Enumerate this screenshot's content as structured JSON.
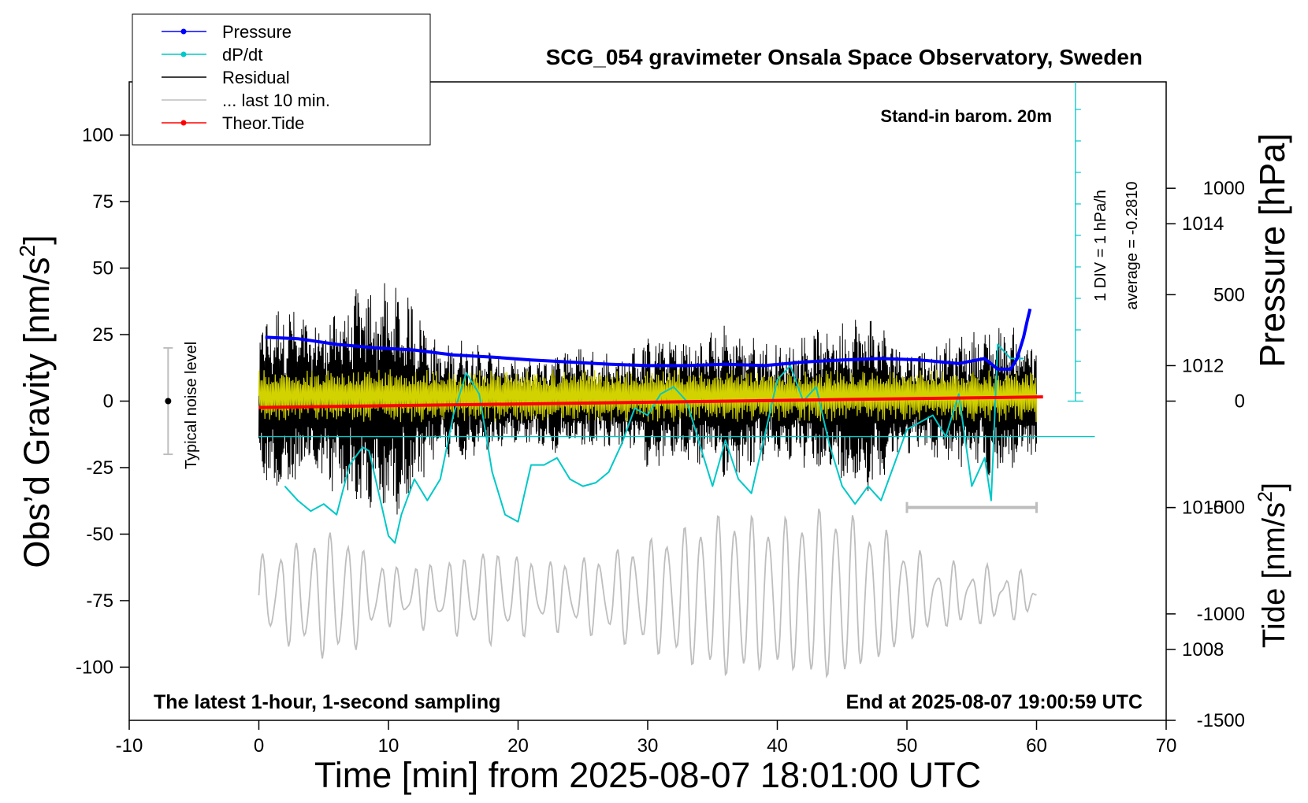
{
  "chart_data": {
    "type": "line",
    "title": "SCG_054 gravimeter Onsala Space Observatory, Sweden",
    "xlabel": "Time [min] from 2025-08-07 18:01:00 UTC",
    "xlim": [
      -10,
      70
    ],
    "x_ticks": [
      -10,
      0,
      10,
      20,
      30,
      40,
      50,
      60,
      70
    ],
    "axes": {
      "left": {
        "label_text": "Obs’d Gravity [nm/s",
        "label_sup": "2",
        "label_end": "]",
        "ylim": [
          -120,
          120
        ],
        "ticks": [
          100,
          75,
          50,
          25,
          0,
          -25,
          -50,
          -75,
          -100
        ]
      },
      "right_pressure": {
        "label_text": "Pressure [hPa]",
        "ylim": [
          1007,
          1016
        ],
        "ticks": [
          1014,
          1012,
          1010,
          1008
        ]
      },
      "right_tide": {
        "label_text": "Tide [nm/s",
        "label_sup": "2",
        "label_end": "]",
        "ylim": [
          -1500,
          1500
        ],
        "ticks": [
          1000,
          500,
          0,
          -500,
          -1000,
          -1500
        ]
      }
    },
    "legend": {
      "placement": "top-left",
      "entries": [
        {
          "label": "Pressure",
          "color": "#0000ff",
          "marker": true
        },
        {
          "label": "dP/dt",
          "color": "#00c8c8",
          "marker": true
        },
        {
          "label": "Residual",
          "color": "#000000",
          "marker": false
        },
        {
          "label": "... last 10 min.",
          "color": "#bebebe",
          "marker": false
        },
        {
          "label": "Theor.Tide",
          "color": "#ff0000",
          "marker": true
        }
      ]
    },
    "annotations": {
      "barometer": "Stand-in barom. 20m",
      "div": "1 DIV = 1 hPa/h",
      "average": "average = -0.2810",
      "noise": "Typical noise level",
      "latest": "The latest 1-hour, 1-second sampling",
      "end": "End at 2025-08-07 19:00:59 UTC"
    },
    "noise_level": {
      "x": -7,
      "center": 0,
      "range": [
        -20,
        20
      ]
    },
    "last10_bar": {
      "x": [
        50,
        60
      ]
    },
    "dpdt_scale": {
      "x": 63,
      "div_hpa_per_h": 1
    },
    "series": [
      {
        "name": "Pressure",
        "axis": "right_pressure",
        "color": "#0000ff",
        "x": [
          0.5,
          3,
          6,
          9,
          12,
          15,
          18,
          21,
          24,
          27,
          30,
          33,
          36,
          39,
          42,
          45,
          48,
          51,
          54,
          56,
          57,
          58,
          58.5,
          59,
          59.3,
          59.5
        ],
        "values": [
          1012.4,
          1012.38,
          1012.3,
          1012.25,
          1012.22,
          1012.15,
          1012.12,
          1012.08,
          1012.05,
          1012.02,
          1012.0,
          1012.0,
          1012.02,
          1012.0,
          1012.05,
          1012.08,
          1012.1,
          1012.08,
          1012.03,
          1012.1,
          1011.95,
          1011.95,
          1012.1,
          1012.4,
          1012.65,
          1012.8
        ]
      },
      {
        "name": "dP/dt",
        "axis": "right_pressure",
        "color": "#00c8c8",
        "x": [
          2,
          3,
          4,
          5,
          6,
          7,
          8,
          8.5,
          9,
          10,
          10.5,
          11,
          12,
          13,
          14,
          15,
          16,
          17,
          18,
          19,
          20,
          21,
          22,
          23,
          24,
          25,
          26,
          27,
          28,
          29,
          30,
          31,
          32,
          33,
          34,
          35,
          36,
          37,
          38,
          39,
          40,
          41,
          42,
          43,
          44,
          45,
          46,
          47,
          48,
          49,
          50,
          51,
          52,
          53,
          54,
          55,
          56,
          56.5,
          57,
          58,
          59
        ],
        "values": [
          1010.3,
          1010.1,
          1009.95,
          1010.05,
          1009.9,
          1010.6,
          1010.85,
          1010.8,
          1010.4,
          1009.6,
          1009.5,
          1009.9,
          1010.4,
          1010.1,
          1010.4,
          1011.3,
          1011.9,
          1011.6,
          1010.5,
          1009.9,
          1009.8,
          1010.6,
          1010.6,
          1010.7,
          1010.4,
          1010.3,
          1010.35,
          1010.5,
          1010.9,
          1011.4,
          1011.3,
          1011.6,
          1011.7,
          1011.5,
          1010.9,
          1010.3,
          1010.95,
          1010.4,
          1010.2,
          1011.0,
          1011.8,
          1012.0,
          1011.5,
          1011.7,
          1010.9,
          1010.3,
          1010.05,
          1010.3,
          1010.1,
          1010.6,
          1011.1,
          1011.2,
          1011.3,
          1011.0,
          1011.6,
          1010.3,
          1010.7,
          1010.1,
          1012.3,
          1012.1,
          1012.1
        ]
      },
      {
        "name": "Residual",
        "axis": "left",
        "color": "#000000",
        "x_range": [
          0,
          60
        ]
      },
      {
        "name": "... last 10 min.",
        "axis": "left",
        "color": "#bebebe",
        "x_range": [
          0,
          60
        ]
      },
      {
        "name": "Theor.Tide",
        "axis": "right_tide",
        "color": "#ff0000",
        "x": [
          0,
          60.5
        ],
        "values": [
          -30,
          20
        ]
      }
    ],
    "overlays": [
      {
        "color": "#d2d200",
        "axis": "left",
        "x_range": [
          0,
          60
        ]
      }
    ],
    "dpdt_average_line": {
      "axis": "right_pressure",
      "value": 1011.0
    }
  }
}
